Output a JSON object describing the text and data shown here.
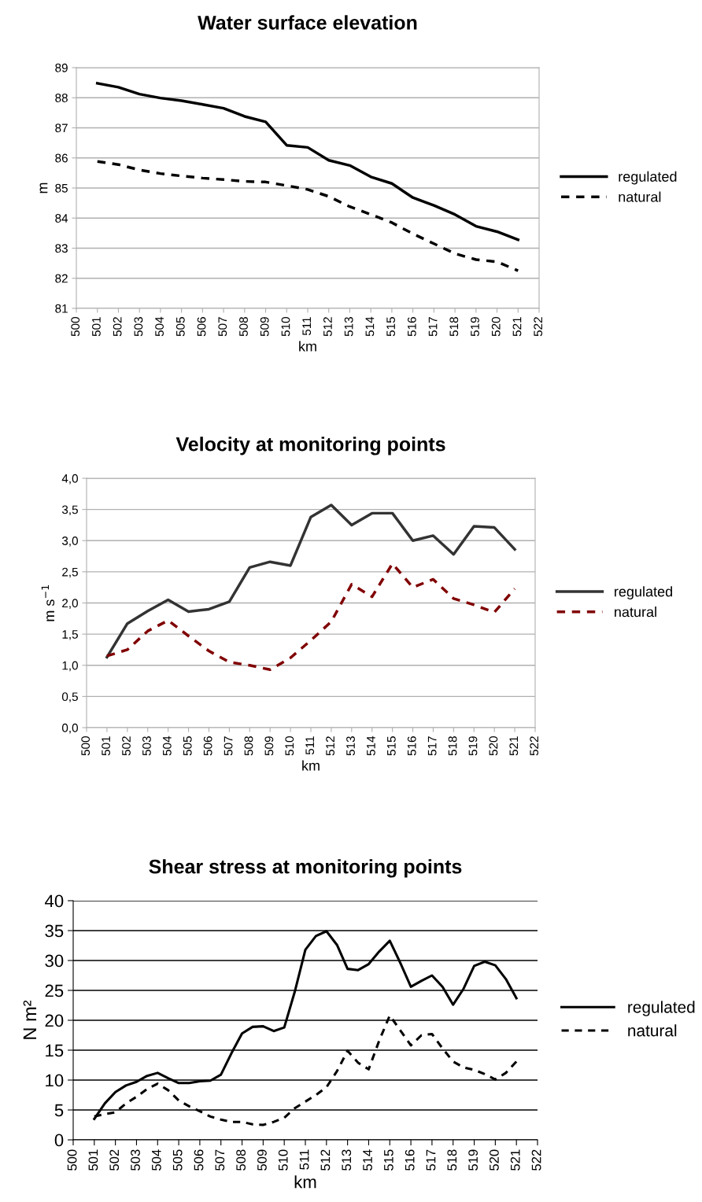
{
  "chart_data": [
    {
      "type": "line",
      "title": "Water surface elevation",
      "xlabel": "km",
      "ylabel": "m",
      "x": [
        501,
        502,
        503,
        504,
        505,
        506,
        507,
        508,
        509,
        510,
        511,
        512,
        513,
        514,
        515,
        516,
        517,
        518,
        519,
        520,
        521
      ],
      "series": [
        {
          "name": "regulated",
          "color": "#000000",
          "line_style": "solid",
          "values": [
            88.48,
            88.35,
            88.12,
            87.99,
            87.9,
            87.78,
            87.65,
            87.38,
            87.2,
            86.42,
            86.35,
            85.92,
            85.75,
            85.37,
            85.15,
            84.68,
            84.42,
            84.12,
            83.73,
            83.55,
            83.28
          ]
        },
        {
          "name": "natural",
          "color": "#000000",
          "line_style": "dashed",
          "values": [
            85.88,
            85.78,
            85.6,
            85.48,
            85.4,
            85.33,
            85.28,
            85.22,
            85.2,
            85.08,
            84.95,
            84.72,
            84.38,
            84.12,
            83.85,
            83.48,
            83.15,
            82.82,
            82.62,
            82.55,
            82.25
          ]
        }
      ],
      "xlim": [
        500,
        522
      ],
      "xticks": [
        500,
        501,
        502,
        503,
        504,
        505,
        506,
        507,
        508,
        509,
        510,
        511,
        512,
        513,
        514,
        515,
        516,
        517,
        518,
        519,
        520,
        521,
        522
      ],
      "ylim": [
        81,
        89
      ],
      "yticks": [
        81,
        82,
        83,
        84,
        85,
        86,
        87,
        88,
        89
      ],
      "grid": "y",
      "legend": "right",
      "marker": "none"
    },
    {
      "type": "line",
      "title": "Velocity at monitoring points",
      "xlabel": "km",
      "ylabel": "m s$^{−1}$",
      "x": [
        501,
        502,
        503,
        504,
        505,
        506,
        507,
        508,
        509,
        510,
        511,
        512,
        513,
        514,
        515,
        516,
        517,
        518,
        519,
        520,
        521
      ],
      "series": [
        {
          "name": "regulated",
          "color": "#333333",
          "line_style": "solid",
          "values": [
            1.13,
            1.67,
            1.87,
            2.05,
            1.86,
            1.9,
            2.02,
            2.57,
            2.66,
            2.6,
            3.38,
            3.57,
            3.25,
            3.44,
            3.44,
            3.0,
            3.08,
            2.78,
            3.23,
            3.21,
            2.86
          ]
        },
        {
          "name": "natural",
          "color": "#800000",
          "line_style": "dashed",
          "values": [
            1.15,
            1.25,
            1.55,
            1.72,
            1.47,
            1.23,
            1.05,
            1.0,
            0.93,
            1.12,
            1.4,
            1.7,
            2.3,
            2.1,
            2.63,
            2.25,
            2.38,
            2.07,
            1.97,
            1.85,
            2.23
          ]
        }
      ],
      "xlim": [
        500,
        522
      ],
      "xticks": [
        500,
        501,
        502,
        503,
        504,
        505,
        506,
        507,
        508,
        509,
        510,
        511,
        512,
        513,
        514,
        515,
        516,
        517,
        518,
        519,
        520,
        521,
        522
      ],
      "ylim": [
        0,
        4
      ],
      "yticks": [
        {
          "value": 0,
          "label": "0,0"
        },
        {
          "value": 0.5,
          "label": "0,5"
        },
        {
          "value": 1,
          "label": "1,0"
        },
        {
          "value": 1.5,
          "label": "1,5"
        },
        {
          "value": 2,
          "label": "2,0"
        },
        {
          "value": 2.5,
          "label": "2,5"
        },
        {
          "value": 3,
          "label": "3,0"
        },
        {
          "value": 3.5,
          "label": "3,5"
        },
        {
          "value": 4,
          "label": "4,0"
        }
      ],
      "grid": "y",
      "legend": "right",
      "marker": "none"
    },
    {
      "type": "line",
      "title": "Shear stress at monitoring points",
      "xlabel": "km",
      "ylabel": "N m²",
      "x": [
        501,
        501.5,
        502,
        502.5,
        503,
        503.5,
        504,
        504.5,
        505,
        505.5,
        506,
        506.5,
        507,
        507.5,
        508,
        508.5,
        509,
        509.5,
        510,
        510.5,
        511,
        511.5,
        512,
        512.5,
        513,
        513.5,
        514,
        514.5,
        515,
        515.5,
        516,
        516.5,
        517,
        517.5,
        518,
        518.5,
        519,
        519.5,
        520,
        520.5,
        521
      ],
      "series": [
        {
          "name": "regulated",
          "color": "#000000",
          "line_style": "solid",
          "values": [
            3.5,
            6.1,
            8.0,
            9.1,
            9.7,
            10.7,
            11.2,
            10.3,
            9.5,
            9.5,
            9.8,
            9.9,
            10.9,
            14.5,
            17.8,
            18.9,
            19.0,
            18.2,
            18.8,
            24.8,
            31.8,
            34.1,
            34.9,
            32.6,
            28.6,
            28.4,
            29.4,
            31.5,
            33.3,
            29.6,
            25.6,
            26.6,
            27.5,
            25.6,
            22.6,
            25.3,
            29.1,
            29.8,
            29.2,
            26.9,
            23.7
          ]
        },
        {
          "name": "natural",
          "color": "#000000",
          "line_style": "dashed",
          "values": [
            3.9,
            4.3,
            4.6,
            6.1,
            7.2,
            8.5,
            9.4,
            8.3,
            6.6,
            5.6,
            4.8,
            3.9,
            3.4,
            3.0,
            3.0,
            2.6,
            2.5,
            3.0,
            3.7,
            5.3,
            6.4,
            7.5,
            8.8,
            11.5,
            14.9,
            12.9,
            11.8,
            16.6,
            20.8,
            18.3,
            15.8,
            17.5,
            17.7,
            15.3,
            13.1,
            12.1,
            11.7,
            11.0,
            10.1,
            11.2,
            13.1
          ]
        }
      ],
      "xlim": [
        500,
        522
      ],
      "xticks": [
        500,
        501,
        502,
        503,
        504,
        505,
        506,
        507,
        508,
        509,
        510,
        511,
        512,
        513,
        514,
        515,
        516,
        517,
        518,
        519,
        520,
        521,
        522
      ],
      "ylim": [
        0,
        40
      ],
      "yticks": [
        0,
        5,
        10,
        15,
        20,
        25,
        30,
        35,
        40
      ],
      "grid": "y",
      "legend": "right",
      "marker": "none"
    }
  ]
}
